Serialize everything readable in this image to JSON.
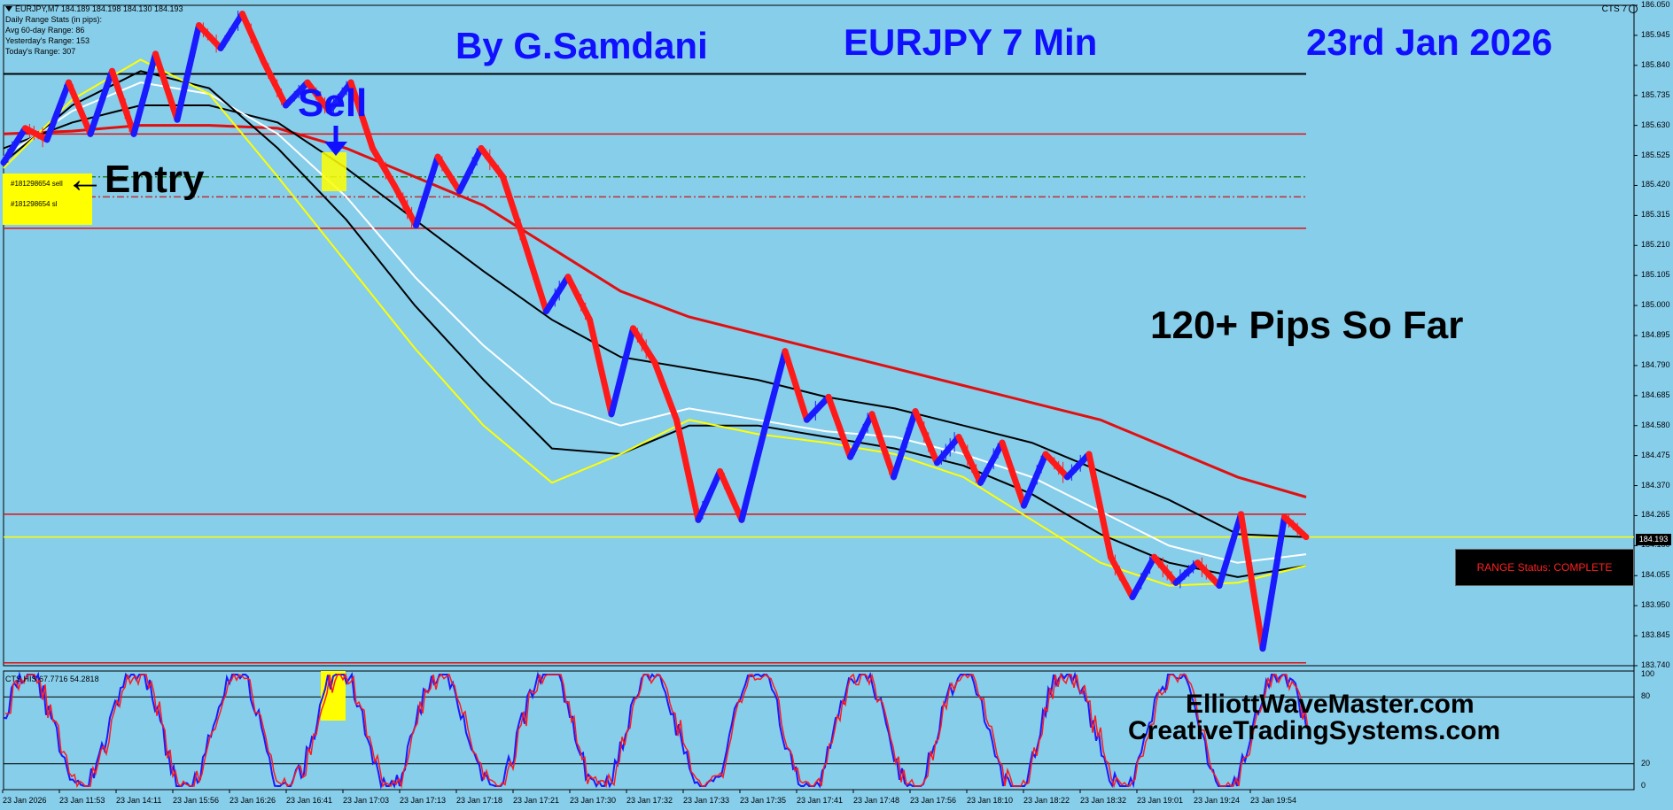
{
  "window": {
    "symbol_line": "EURJPY,M7  184.189 184.198 184.130 184.193",
    "stats": [
      "Daily Range Stats (in pips):",
      "Avg 60-day Range: 86",
      "Yesterday's Range: 153",
      "Today's Range: 307"
    ],
    "indicator_label": "CTS 7"
  },
  "titles": {
    "author": "By G.Samdani",
    "instrument": "EURJPY 7 Min",
    "date": "23rd Jan 2026"
  },
  "annotations": {
    "sell": "Sell",
    "entry": "Entry",
    "entry_arrow": "←",
    "pips": "120+ Pips So Far",
    "order_sell": "#181298654 sell",
    "order_sl": "#181298654 sl",
    "range_status": "RANGE Status: COMPLETE",
    "site1": "ElliottWaveMaster.com",
    "site2": "CreativeTradingSystems.com",
    "current_price": "184.193"
  },
  "oscillator": {
    "label": "CTS HIS 67.7716 54.2818",
    "levels": [
      "100",
      "80",
      "20",
      "0"
    ]
  },
  "colors": {
    "background": "#87ceeb",
    "title": "#1010ff",
    "bull": "#1a1aff",
    "bear": "#ff1a1a",
    "ma_red": "#e01010",
    "ma_black": "#000000",
    "ma_white": "#ffffff",
    "ma_yellow": "#ffff00"
  },
  "chart_data": {
    "type": "line",
    "y_axis_ticks": [
      "186.050",
      "185.945",
      "185.840",
      "185.735",
      "185.630",
      "185.525",
      "185.420",
      "185.315",
      "185.210",
      "185.105",
      "185.000",
      "184.895",
      "184.790",
      "184.685",
      "184.580",
      "184.475",
      "184.370",
      "184.265",
      "184.160",
      "184.055",
      "183.950",
      "183.845",
      "183.740"
    ],
    "ylim": [
      183.74,
      186.05
    ],
    "x_axis_ticks": [
      "23 Jan 2026",
      "23 Jan 11:53",
      "23 Jan 14:11",
      "23 Jan 15:56",
      "23 Jan 16:26",
      "23 Jan 16:41",
      "23 Jan 17:03",
      "23 Jan 17:13",
      "23 Jan 17:18",
      "23 Jan 17:21",
      "23 Jan 17:30",
      "23 Jan 17:32",
      "23 Jan 17:33",
      "23 Jan 17:35",
      "23 Jan 17:41",
      "23 Jan 17:48",
      "23 Jan 17:56",
      "23 Jan 18:10",
      "23 Jan 18:22",
      "23 Jan 18:32",
      "23 Jan 19:01",
      "23 Jan 19:24",
      "23 Jan 19:54"
    ],
    "horizontal_levels": [
      {
        "price": 185.81,
        "color": "#000000",
        "style": "solid"
      },
      {
        "price": 185.6,
        "color": "#e01010",
        "style": "solid"
      },
      {
        "price": 185.45,
        "color": "#208020",
        "style": "dashdot"
      },
      {
        "price": 185.38,
        "color": "#c03030",
        "style": "dashdot"
      },
      {
        "price": 185.27,
        "color": "#e01010",
        "style": "solid"
      },
      {
        "price": 184.27,
        "color": "#e01010",
        "style": "solid"
      },
      {
        "price": 184.19,
        "color": "#ffff00",
        "style": "solid"
      },
      {
        "price": 183.75,
        "color": "#e01010",
        "style": "solid"
      }
    ],
    "price_path": [
      185.5,
      185.62,
      185.58,
      185.78,
      185.6,
      185.82,
      185.6,
      185.88,
      185.65,
      185.98,
      185.9,
      186.02,
      185.85,
      185.7,
      185.78,
      185.68,
      185.78,
      185.55,
      185.42,
      185.28,
      185.52,
      185.4,
      185.55,
      185.45,
      185.22,
      184.98,
      185.1,
      184.95,
      184.62,
      184.92,
      184.8,
      184.6,
      184.25,
      184.42,
      184.25,
      184.55,
      184.84,
      184.6,
      184.68,
      184.47,
      184.62,
      184.4,
      184.63,
      184.45,
      184.54,
      184.38,
      184.52,
      184.3,
      184.48,
      184.4,
      184.48,
      184.12,
      183.98,
      184.12,
      184.03,
      184.1,
      184.02,
      184.27,
      183.8,
      184.26,
      184.19
    ],
    "series": [
      {
        "color": "#e01010",
        "values": [
          185.6,
          185.61,
          185.63,
          185.63,
          185.62,
          185.55,
          185.45,
          185.35,
          185.2,
          185.05,
          184.96,
          184.9,
          184.84,
          184.78,
          184.72,
          184.66,
          184.6,
          184.5,
          184.4,
          184.33
        ]
      },
      {
        "color": "#000000",
        "values": [
          185.55,
          185.64,
          185.7,
          185.7,
          185.64,
          185.48,
          185.3,
          185.12,
          184.95,
          184.82,
          184.78,
          184.74,
          184.68,
          184.64,
          184.58,
          184.52,
          184.42,
          184.32,
          184.2,
          184.19
        ]
      },
      {
        "color": "#ffffff",
        "values": [
          185.52,
          185.68,
          185.78,
          185.74,
          185.6,
          185.38,
          185.1,
          184.86,
          184.66,
          184.58,
          184.64,
          184.6,
          184.56,
          184.54,
          184.48,
          184.4,
          184.28,
          184.16,
          184.1,
          184.13
        ]
      },
      {
        "color": "#000000",
        "values": [
          185.5,
          185.7,
          185.82,
          185.76,
          185.55,
          185.3,
          185.0,
          184.74,
          184.5,
          184.48,
          184.58,
          184.58,
          184.54,
          184.5,
          184.44,
          184.34,
          184.2,
          184.1,
          184.05,
          184.09
        ]
      },
      {
        "color": "#ffff00",
        "values": [
          185.48,
          185.72,
          185.86,
          185.74,
          185.45,
          185.15,
          184.85,
          184.58,
          184.38,
          184.48,
          184.6,
          184.55,
          184.52,
          184.48,
          184.4,
          184.25,
          184.1,
          184.02,
          184.03,
          184.09
        ]
      }
    ]
  }
}
